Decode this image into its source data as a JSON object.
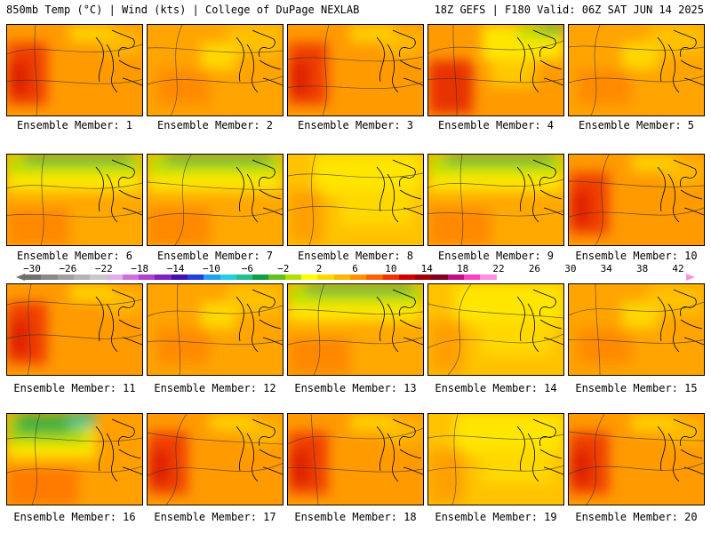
{
  "header": {
    "left_title": "850mb Temp (°C) | Wind (kts) | College of DuPage NEXLAB",
    "right_title": "18Z GEFS | F180 Valid: 06Z SAT JUN 14 2025"
  },
  "colorbar": {
    "labels": [
      "-30",
      "-26",
      "-22",
      "-18",
      "-14",
      "-10",
      "-6",
      "-2",
      "2",
      "6",
      "10",
      "14",
      "18",
      "22",
      "26",
      "30",
      "34",
      "38",
      "42"
    ],
    "colors": [
      "#707070",
      "#8a8a8a",
      "#a0a0a0",
      "#b4b4b4",
      "#c8c8c8",
      "#e0b0e8",
      "#d070e0",
      "#b040d0",
      "#8020c0",
      "#4010b0",
      "#2040e0",
      "#20a0f0",
      "#20d0e0",
      "#20c090",
      "#10a040",
      "#60c020",
      "#b0e000",
      "#ffff00",
      "#ffd800",
      "#ffb400",
      "#ff9000",
      "#ff6000",
      "#f03000",
      "#d00000",
      "#a00000",
      "#800020",
      "#c01080",
      "#ff40c0",
      "#ff90e0"
    ]
  },
  "members": [
    {
      "label": "Ensemble Member: 1",
      "scheme": "hot-west"
    },
    {
      "label": "Ensemble Member: 2",
      "scheme": "warm"
    },
    {
      "label": "Ensemble Member: 3",
      "scheme": "hot-west"
    },
    {
      "label": "Ensemble Member: 4",
      "scheme": "green-ne"
    },
    {
      "label": "Ensemble Member: 5",
      "scheme": "warm"
    },
    {
      "label": "Ensemble Member: 6",
      "scheme": "green-n"
    },
    {
      "label": "Ensemble Member: 7",
      "scheme": "green-n"
    },
    {
      "label": "Ensemble Member: 8",
      "scheme": "yellow"
    },
    {
      "label": "Ensemble Member: 9",
      "scheme": "green-n"
    },
    {
      "label": "Ensemble Member: 10",
      "scheme": "hot-west"
    },
    {
      "label": "Ensemble Member: 11",
      "scheme": "hot-west"
    },
    {
      "label": "Ensemble Member: 12",
      "scheme": "warm"
    },
    {
      "label": "Ensemble Member: 13",
      "scheme": "green-n"
    },
    {
      "label": "Ensemble Member: 14",
      "scheme": "yellow"
    },
    {
      "label": "Ensemble Member: 15",
      "scheme": "warm"
    },
    {
      "label": "Ensemble Member: 16",
      "scheme": "green-nw"
    },
    {
      "label": "Ensemble Member: 17",
      "scheme": "hot-west"
    },
    {
      "label": "Ensemble Member: 18",
      "scheme": "hot-west"
    },
    {
      "label": "Ensemble Member: 19",
      "scheme": "yellow"
    },
    {
      "label": "Ensemble Member: 20",
      "scheme": "hot-west"
    }
  ]
}
